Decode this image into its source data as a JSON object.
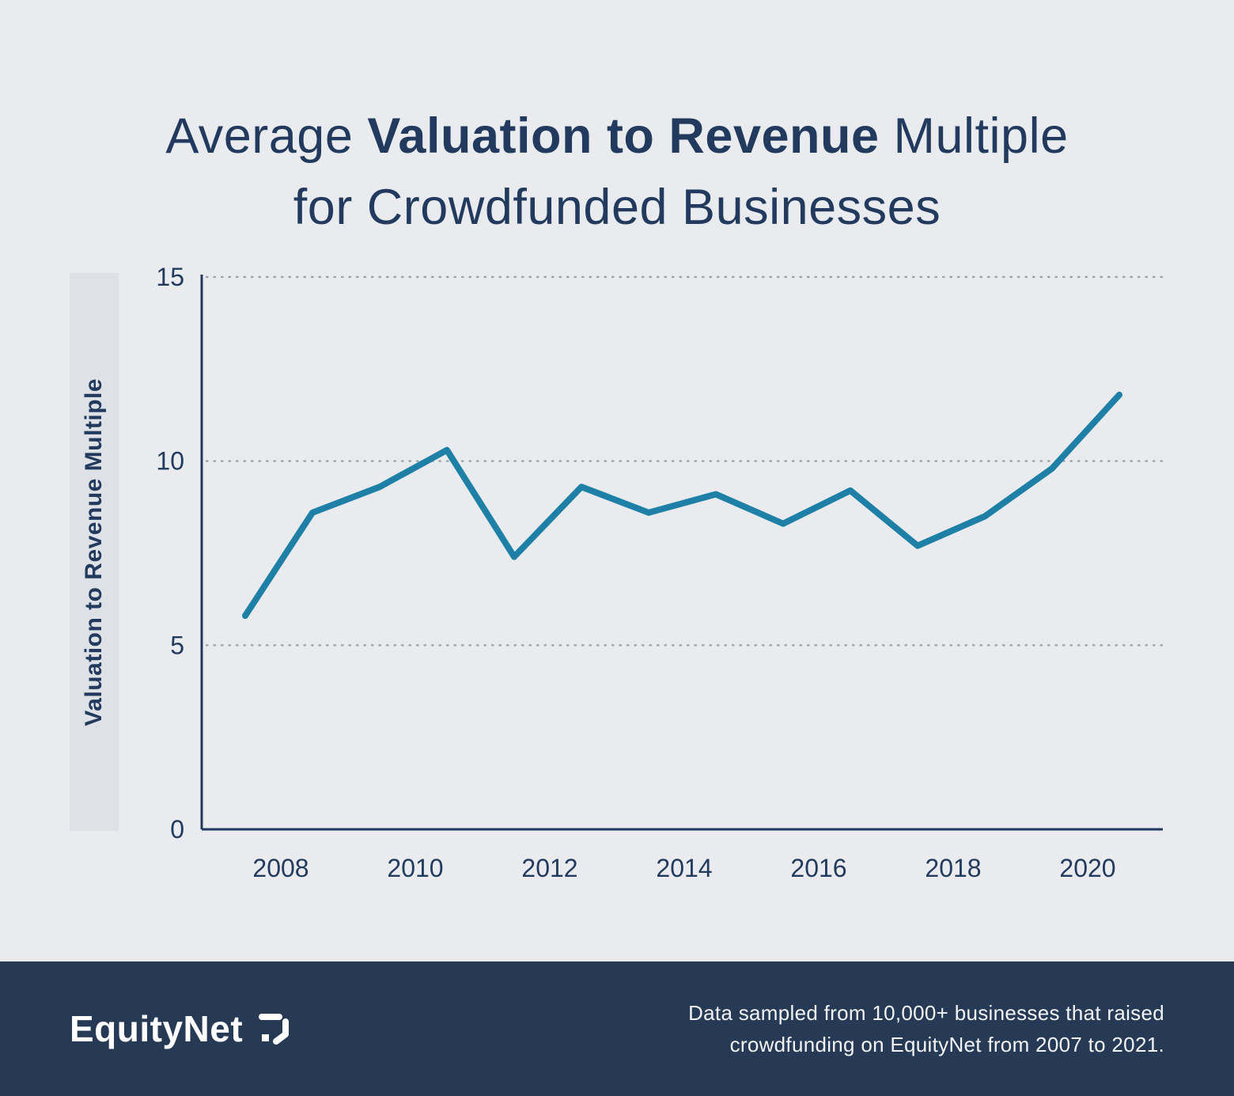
{
  "title": {
    "prefix": "Average ",
    "bold": "Valuation to Revenue",
    "suffix": " Multiple",
    "line2": "for Crowdfunded Businesses"
  },
  "chart_data": {
    "type": "line",
    "title": "Average Valuation to Revenue Multiple for Crowdfunded Businesses",
    "x": [
      2007,
      2008,
      2009,
      2010,
      2011,
      2012,
      2013,
      2014,
      2015,
      2016,
      2017,
      2018,
      2019,
      2020
    ],
    "values": [
      5.8,
      8.6,
      9.3,
      10.3,
      7.4,
      9.3,
      8.6,
      9.1,
      8.3,
      9.2,
      7.7,
      8.5,
      9.8,
      11.8
    ],
    "xlabel": "",
    "ylabel": "Valuation to Revenue Multiple",
    "ylim": [
      0,
      15
    ],
    "yticks": [
      0,
      5,
      10,
      15
    ],
    "xticks": [
      2008,
      2010,
      2012,
      2014,
      2016,
      2018,
      2020
    ],
    "grid": "horizontal-dotted",
    "legend": "none",
    "line_color": "#1e80a6"
  },
  "footer": {
    "brand": "EquityNet",
    "note_line1": "Data sampled from 10,000+ businesses that raised",
    "note_line2": "crowdfunding on EquityNet from 2007 to 2021."
  },
  "colors": {
    "background": "#e9ebee",
    "title_text": "#223a5d",
    "axis": "#223a5d",
    "gridline": "#9ea3ac",
    "line": "#1e80a6",
    "footer_background": "#263a55",
    "footer_text": "#ffffff",
    "y_band": "#dee1e5"
  }
}
